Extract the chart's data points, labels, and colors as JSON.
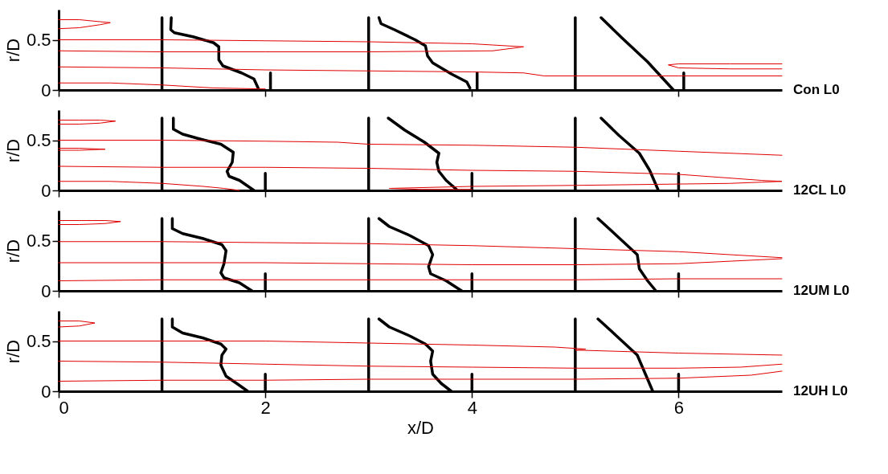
{
  "chart_data": [
    {
      "type": "line",
      "ylabel": "r/D",
      "xlim": [
        0,
        7
      ],
      "ylim": [
        0,
        0.8
      ],
      "xticks": [
        0,
        2,
        4,
        6
      ],
      "yticks": [
        0,
        0.5
      ],
      "tick_labels": "y",
      "grid": false,
      "annotations": [
        "Con L0"
      ],
      "series": [
        {
          "type": "line",
          "color": "#000000",
          "x": [
            1,
            1
          ],
          "values": [
            0,
            0.72
          ]
        },
        {
          "type": "line",
          "color": "#000000",
          "x": [
            3,
            3
          ],
          "values": [
            0,
            0.72
          ]
        },
        {
          "type": "line",
          "color": "#000000",
          "x": [
            5,
            5
          ],
          "values": [
            0,
            0.72
          ]
        },
        {
          "type": "line",
          "color": "#000000",
          "x": [
            2.05,
            2.05
          ],
          "values": [
            0,
            0.17
          ]
        },
        {
          "type": "line",
          "color": "#000000",
          "x": [
            4.05,
            4.05
          ],
          "values": [
            0,
            0.17
          ]
        },
        {
          "type": "line",
          "color": "#000000",
          "x": [
            6.05,
            6.05
          ],
          "values": [
            0,
            0.17
          ]
        },
        {
          "type": "line",
          "color": "#000000",
          "x": [
            1.09,
            1.085,
            1.12,
            1.3,
            1.5,
            1.55,
            1.55,
            1.59,
            1.77,
            1.89,
            1.93
          ],
          "values": [
            0.72,
            0.6,
            0.57,
            0.53,
            0.47,
            0.43,
            0.3,
            0.24,
            0.17,
            0.11,
            0.02
          ]
        },
        {
          "type": "line",
          "color": "#000000",
          "x": [
            3.1,
            3.12,
            3.25,
            3.45,
            3.55,
            3.57,
            3.62,
            3.8,
            3.95,
            3.98
          ],
          "values": [
            0.72,
            0.66,
            0.6,
            0.5,
            0.44,
            0.34,
            0.27,
            0.16,
            0.08,
            0.02
          ]
        },
        {
          "type": "line",
          "color": "#000000",
          "x": [
            5.25,
            5.45,
            5.7,
            5.95
          ],
          "values": [
            0.72,
            0.52,
            0.28,
            0.0
          ]
        },
        {
          "type": "line",
          "color": "#e00000",
          "x": [
            0,
            0.2,
            0.4,
            0.5,
            0.4,
            0.2,
            0
          ],
          "values": [
            0.7,
            0.7,
            0.68,
            0.67,
            0.65,
            0.62,
            0.61
          ]
        },
        {
          "type": "line",
          "color": "#e00000",
          "x": [
            0,
            1,
            2,
            3,
            4,
            4.5,
            4.2,
            3,
            2,
            1,
            0
          ],
          "values": [
            0.5,
            0.5,
            0.49,
            0.48,
            0.46,
            0.43,
            0.39,
            0.38,
            0.38,
            0.38,
            0.39
          ]
        },
        {
          "type": "line",
          "color": "#e00000",
          "x": [
            0,
            1,
            2,
            3,
            4,
            4.5,
            4.7,
            5,
            6,
            7
          ],
          "values": [
            0.23,
            0.22,
            0.2,
            0.19,
            0.18,
            0.17,
            0.14,
            0.14,
            0.14,
            0.14
          ]
        },
        {
          "type": "line",
          "color": "#e00000",
          "x": [
            7,
            6.5,
            6,
            5.9,
            6,
            6.5,
            7
          ],
          "values": [
            0.26,
            0.26,
            0.26,
            0.25,
            0.22,
            0.21,
            0.21
          ]
        },
        {
          "type": "line",
          "color": "#e00000",
          "x": [
            0,
            0.5,
            1,
            1.5,
            2
          ],
          "values": [
            0.07,
            0.07,
            0.05,
            0.02,
            0.01
          ]
        }
      ]
    },
    {
      "type": "line",
      "ylabel": "r/D",
      "xlim": [
        0,
        7
      ],
      "ylim": [
        0,
        0.8
      ],
      "xticks": [
        0,
        2,
        4,
        6
      ],
      "yticks": [
        0,
        0.5
      ],
      "tick_labels": "y",
      "grid": false,
      "annotations": [
        "12CL L0"
      ],
      "series": [
        {
          "type": "line",
          "color": "#000000",
          "x": [
            1,
            1
          ],
          "values": [
            0,
            0.72
          ]
        },
        {
          "type": "line",
          "color": "#000000",
          "x": [
            3,
            3
          ],
          "values": [
            0,
            0.72
          ]
        },
        {
          "type": "line",
          "color": "#000000",
          "x": [
            5,
            5
          ],
          "values": [
            0,
            0.72
          ]
        },
        {
          "type": "line",
          "color": "#000000",
          "x": [
            2,
            2
          ],
          "values": [
            0,
            0.17
          ]
        },
        {
          "type": "line",
          "color": "#000000",
          "x": [
            4,
            4
          ],
          "values": [
            0,
            0.17
          ]
        },
        {
          "type": "line",
          "color": "#000000",
          "x": [
            6,
            6
          ],
          "values": [
            0,
            0.17
          ]
        },
        {
          "type": "line",
          "color": "#000000",
          "x": [
            1.11,
            1.11,
            1.2,
            1.34,
            1.57,
            1.69,
            1.68,
            1.63,
            1.65,
            1.75,
            1.89
          ],
          "values": [
            0.72,
            0.61,
            0.56,
            0.52,
            0.46,
            0.38,
            0.28,
            0.19,
            0.14,
            0.1,
            0.0
          ]
        },
        {
          "type": "line",
          "color": "#000000",
          "x": [
            3.19,
            3.35,
            3.54,
            3.68,
            3.66,
            3.68,
            3.75,
            3.85
          ],
          "values": [
            0.72,
            0.6,
            0.48,
            0.37,
            0.28,
            0.19,
            0.1,
            0.01
          ]
        },
        {
          "type": "line",
          "color": "#000000",
          "x": [
            5.25,
            5.42,
            5.62,
            5.72,
            5.8
          ],
          "values": [
            0.72,
            0.55,
            0.37,
            0.2,
            0.01
          ]
        },
        {
          "type": "line",
          "color": "#e00000",
          "x": [
            0,
            0.2,
            0.4,
            0.55,
            0.4,
            0.2,
            0
          ],
          "values": [
            0.7,
            0.7,
            0.7,
            0.69,
            0.67,
            0.66,
            0.66
          ]
        },
        {
          "type": "line",
          "color": "#e00000",
          "x": [
            0,
            1,
            2,
            2.7,
            3,
            4,
            5,
            6,
            7
          ],
          "values": [
            0.5,
            0.5,
            0.49,
            0.48,
            0.46,
            0.45,
            0.43,
            0.39,
            0.35
          ]
        },
        {
          "type": "line",
          "color": "#e00000",
          "x": [
            0,
            0.2,
            0.45,
            0.2,
            0
          ],
          "values": [
            0.42,
            0.42,
            0.41,
            0.4,
            0.4
          ]
        },
        {
          "type": "line",
          "color": "#e00000",
          "x": [
            0,
            1,
            2,
            3,
            4,
            5,
            6,
            6.8,
            7,
            6.5,
            5,
            4,
            3.2,
            3.5,
            4
          ],
          "values": [
            0.24,
            0.23,
            0.23,
            0.22,
            0.2,
            0.19,
            0.16,
            0.1,
            0.09,
            0.07,
            0.05,
            0.04,
            0.02,
            0.01,
            0.01
          ]
        },
        {
          "type": "line",
          "color": "#e00000",
          "x": [
            0,
            0.5,
            1,
            1.4,
            1.6,
            1.75
          ],
          "values": [
            0.09,
            0.09,
            0.07,
            0.04,
            0.02,
            0.0
          ]
        }
      ]
    },
    {
      "type": "line",
      "ylabel": "r/D",
      "xlim": [
        0,
        7
      ],
      "ylim": [
        0,
        0.8
      ],
      "xticks": [
        0,
        2,
        4,
        6
      ],
      "yticks": [
        0,
        0.5
      ],
      "tick_labels": "y",
      "grid": false,
      "annotations": [
        "12UM L0"
      ],
      "series": [
        {
          "type": "line",
          "color": "#000000",
          "x": [
            1,
            1
          ],
          "values": [
            0,
            0.72
          ]
        },
        {
          "type": "line",
          "color": "#000000",
          "x": [
            3,
            3
          ],
          "values": [
            0,
            0.72
          ]
        },
        {
          "type": "line",
          "color": "#000000",
          "x": [
            5,
            5
          ],
          "values": [
            0,
            0.72
          ]
        },
        {
          "type": "line",
          "color": "#000000",
          "x": [
            2,
            2
          ],
          "values": [
            0,
            0.17
          ]
        },
        {
          "type": "line",
          "color": "#000000",
          "x": [
            4,
            4
          ],
          "values": [
            0,
            0.17
          ]
        },
        {
          "type": "line",
          "color": "#000000",
          "x": [
            6,
            6
          ],
          "values": [
            0,
            0.17
          ]
        },
        {
          "type": "line",
          "color": "#000000",
          "x": [
            1.1,
            1.1,
            1.2,
            1.4,
            1.58,
            1.62,
            1.6,
            1.57,
            1.6,
            1.75,
            1.87
          ],
          "values": [
            0.72,
            0.62,
            0.57,
            0.52,
            0.46,
            0.4,
            0.27,
            0.18,
            0.13,
            0.08,
            0.0
          ]
        },
        {
          "type": "line",
          "color": "#000000",
          "x": [
            3.1,
            3.2,
            3.4,
            3.58,
            3.62,
            3.58,
            3.6,
            3.75,
            3.9
          ],
          "values": [
            0.72,
            0.64,
            0.55,
            0.45,
            0.36,
            0.24,
            0.17,
            0.1,
            0.0
          ]
        },
        {
          "type": "line",
          "color": "#000000",
          "x": [
            5.22,
            5.4,
            5.6,
            5.62,
            5.7,
            5.78
          ],
          "values": [
            0.72,
            0.55,
            0.36,
            0.22,
            0.1,
            0.0
          ]
        },
        {
          "type": "line",
          "color": "#e00000",
          "x": [
            0,
            0.2,
            0.45,
            0.6,
            0.45,
            0.2,
            0
          ],
          "values": [
            0.7,
            0.7,
            0.7,
            0.69,
            0.67,
            0.66,
            0.66
          ]
        },
        {
          "type": "line",
          "color": "#e00000",
          "x": [
            0,
            1,
            2,
            3,
            4,
            5,
            6,
            7
          ],
          "values": [
            0.49,
            0.49,
            0.48,
            0.47,
            0.45,
            0.42,
            0.39,
            0.33
          ]
        },
        {
          "type": "line",
          "color": "#e00000",
          "x": [
            0,
            1,
            2,
            3,
            4,
            5,
            6,
            7
          ],
          "values": [
            0.28,
            0.28,
            0.28,
            0.27,
            0.26,
            0.26,
            0.27,
            0.32
          ]
        },
        {
          "type": "line",
          "color": "#e00000",
          "x": [
            0,
            1,
            2,
            3,
            4,
            5,
            6,
            7
          ],
          "values": [
            0.1,
            0.11,
            0.11,
            0.11,
            0.11,
            0.11,
            0.12,
            0.12
          ]
        }
      ]
    },
    {
      "type": "line",
      "ylabel": "r/D",
      "xlabel": "x/D",
      "xlim": [
        0,
        7
      ],
      "ylim": [
        0,
        0.8
      ],
      "xticks": [
        0,
        2,
        4,
        6
      ],
      "yticks": [
        0,
        0.5
      ],
      "grid": false,
      "annotations": [
        "12UH L0"
      ],
      "series": [
        {
          "type": "line",
          "color": "#000000",
          "x": [
            1,
            1
          ],
          "values": [
            0,
            0.72
          ]
        },
        {
          "type": "line",
          "color": "#000000",
          "x": [
            3,
            3
          ],
          "values": [
            0,
            0.72
          ]
        },
        {
          "type": "line",
          "color": "#000000",
          "x": [
            5,
            5
          ],
          "values": [
            0,
            0.72
          ]
        },
        {
          "type": "line",
          "color": "#000000",
          "x": [
            2,
            2
          ],
          "values": [
            0,
            0.17
          ]
        },
        {
          "type": "line",
          "color": "#000000",
          "x": [
            4,
            4
          ],
          "values": [
            0,
            0.17
          ]
        },
        {
          "type": "line",
          "color": "#000000",
          "x": [
            6,
            6
          ],
          "values": [
            0,
            0.17
          ]
        },
        {
          "type": "line",
          "color": "#000000",
          "x": [
            1.1,
            1.1,
            1.2,
            1.4,
            1.57,
            1.62,
            1.58,
            1.57,
            1.62,
            1.72,
            1.83
          ],
          "values": [
            0.72,
            0.64,
            0.58,
            0.53,
            0.47,
            0.42,
            0.36,
            0.26,
            0.15,
            0.08,
            0.0
          ]
        },
        {
          "type": "line",
          "color": "#000000",
          "x": [
            3.1,
            3.2,
            3.4,
            3.55,
            3.62,
            3.6,
            3.62,
            3.7,
            3.8
          ],
          "values": [
            0.72,
            0.64,
            0.55,
            0.47,
            0.4,
            0.3,
            0.17,
            0.08,
            0.0
          ]
        },
        {
          "type": "line",
          "color": "#000000",
          "x": [
            5.22,
            5.4,
            5.6,
            5.65,
            5.7,
            5.75
          ],
          "values": [
            0.72,
            0.55,
            0.36,
            0.24,
            0.12,
            0.0
          ]
        },
        {
          "type": "line",
          "color": "#e00000",
          "x": [
            0,
            0.2,
            0.35,
            0.2,
            0
          ],
          "values": [
            0.7,
            0.7,
            0.68,
            0.65,
            0.64
          ]
        },
        {
          "type": "line",
          "color": "#e00000",
          "x": [
            0,
            1,
            2,
            3,
            4,
            4.8,
            5.1,
            5,
            6,
            7
          ],
          "values": [
            0.5,
            0.5,
            0.5,
            0.48,
            0.46,
            0.44,
            0.42,
            0.41,
            0.38,
            0.36
          ]
        },
        {
          "type": "line",
          "color": "#e00000",
          "x": [
            0,
            1,
            2,
            3,
            4,
            5,
            6,
            6.6,
            7
          ],
          "values": [
            0.3,
            0.29,
            0.27,
            0.25,
            0.24,
            0.23,
            0.23,
            0.24,
            0.27
          ]
        },
        {
          "type": "line",
          "color": "#e00000",
          "x": [
            0,
            1,
            2,
            3,
            4,
            5,
            6,
            6.7,
            7
          ],
          "values": [
            0.1,
            0.11,
            0.11,
            0.12,
            0.12,
            0.12,
            0.13,
            0.16,
            0.2
          ]
        }
      ]
    }
  ]
}
